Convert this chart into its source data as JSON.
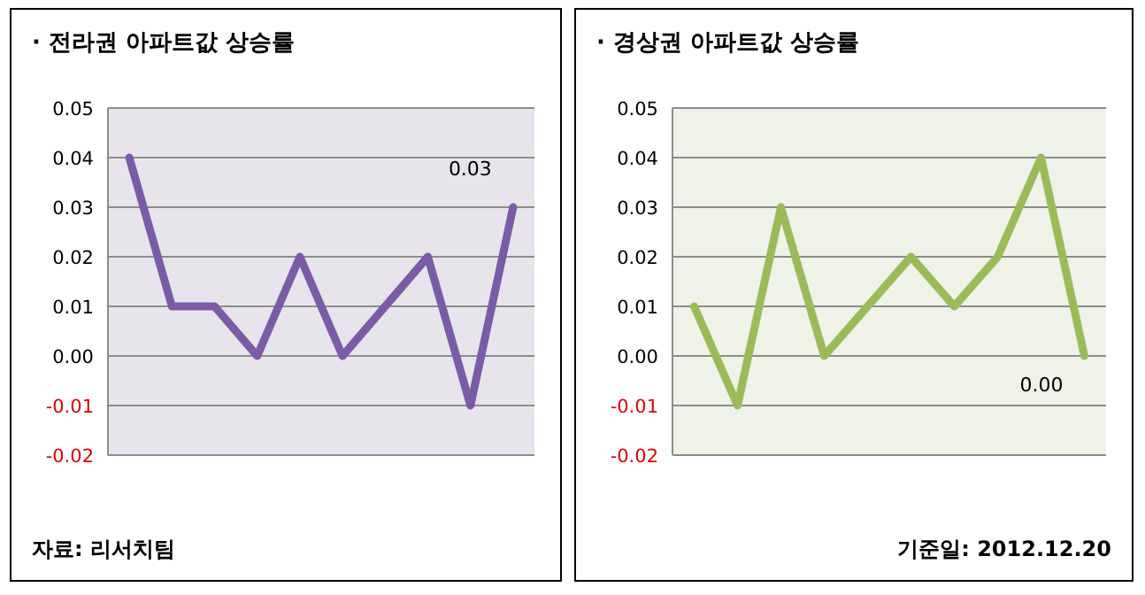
{
  "chart_data": [
    {
      "type": "line",
      "title": "· 전라권 아파트값 상승률",
      "categories": [
        null,
        null,
        null,
        null,
        null,
        null,
        null,
        null,
        null,
        null
      ],
      "values": [
        0.04,
        0.01,
        0.01,
        0.0,
        0.02,
        0.0,
        0.01,
        0.02,
        -0.01,
        0.03
      ],
      "value_labels": [
        null,
        null,
        null,
        null,
        null,
        null,
        null,
        null,
        null,
        "0.03"
      ],
      "color": "#7b5ba6",
      "ylim": [
        -0.02,
        0.05
      ],
      "yticks": [
        {
          "value": -0.02,
          "label": "-0.02"
        },
        {
          "value": -0.01,
          "label": "-0.01"
        },
        {
          "value": 0,
          "label": "0.00"
        },
        {
          "value": 0.01,
          "label": "0.01"
        },
        {
          "value": 0.02,
          "label": "0.02"
        },
        {
          "value": 0.03,
          "label": "0.03"
        },
        {
          "value": 0.04,
          "label": "0.04"
        },
        {
          "value": 0.05,
          "label": "0.05"
        }
      ],
      "grid": "y",
      "annotations": [
        "자료: 리서치팀"
      ]
    },
    {
      "type": "line",
      "title": "· 경상권 아파트값 상승률",
      "categories": [
        null,
        null,
        null,
        null,
        null,
        null,
        null,
        null,
        null,
        null
      ],
      "values": [
        0.01,
        -0.01,
        0.03,
        0.0,
        0.01,
        0.02,
        0.01,
        0.02,
        0.04,
        0.0
      ],
      "value_labels": [
        null,
        null,
        null,
        null,
        null,
        null,
        null,
        null,
        null,
        "0.00"
      ],
      "color": "#9bbb59",
      "ylim": [
        -0.02,
        0.05
      ],
      "yticks": [
        {
          "value": -0.02,
          "label": "-0.02"
        },
        {
          "value": -0.01,
          "label": "-0.01"
        },
        {
          "value": 0,
          "label": "0.00"
        },
        {
          "value": 0.01,
          "label": "0.01"
        },
        {
          "value": 0.02,
          "label": "0.02"
        },
        {
          "value": 0.03,
          "label": "0.03"
        },
        {
          "value": 0.04,
          "label": "0.04"
        },
        {
          "value": 0.05,
          "label": "0.05"
        }
      ],
      "grid": "y",
      "annotations": [
        "기준일: 2012.12.20"
      ]
    }
  ]
}
